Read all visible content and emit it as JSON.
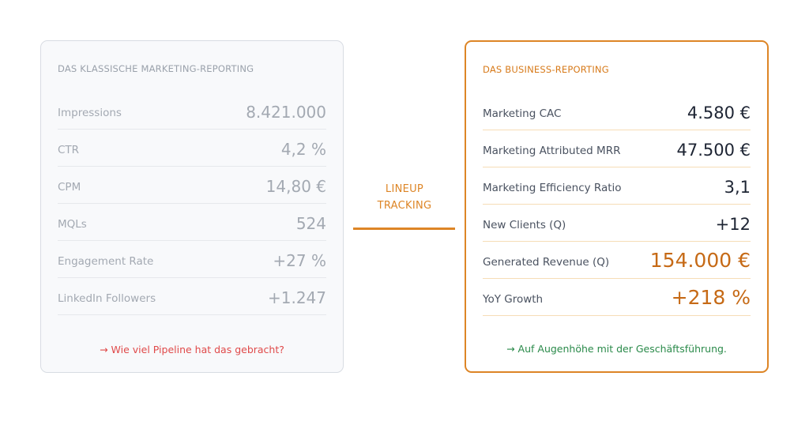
{
  "left_card": {
    "title": "DAS KLASSISCHE MARKETING-REPORTING",
    "rows": [
      {
        "label": "Impressions",
        "value": "8.421.000"
      },
      {
        "label": "CTR",
        "value": "4,2 %"
      },
      {
        "label": "CPM",
        "value": "14,80 €"
      },
      {
        "label": "MQLs",
        "value": "524"
      },
      {
        "label": "Engagement Rate",
        "value": "+27 %"
      },
      {
        "label": "LinkedIn Followers",
        "value": "+1.247"
      }
    ],
    "footer": "→ Wie viel Pipeline hat das gebracht?",
    "footer_color": "#e04a4a"
  },
  "connector": {
    "line1": "LINEUP",
    "line2": "TRACKING",
    "color": "#dd8526"
  },
  "right_card": {
    "title": "DAS BUSINESS-REPORTING",
    "rows": [
      {
        "label": "Marketing CAC",
        "value": "4.580 €"
      },
      {
        "label": "Marketing Attributed MRR",
        "value": "47.500 €"
      },
      {
        "label": "Marketing Efficiency Ratio",
        "value": "3,1"
      },
      {
        "label": "New Clients (Q)",
        "value": "+12"
      },
      {
        "label": "Generated Revenue (Q)",
        "value": "154.000 €"
      },
      {
        "label": "YoY Growth",
        "value": "+218 %"
      }
    ],
    "footer": "→ Auf Augenhöhe mit der Geschäftsführung.",
    "footer_color": "#2a8a4a",
    "accent_color": "#dd8526"
  }
}
